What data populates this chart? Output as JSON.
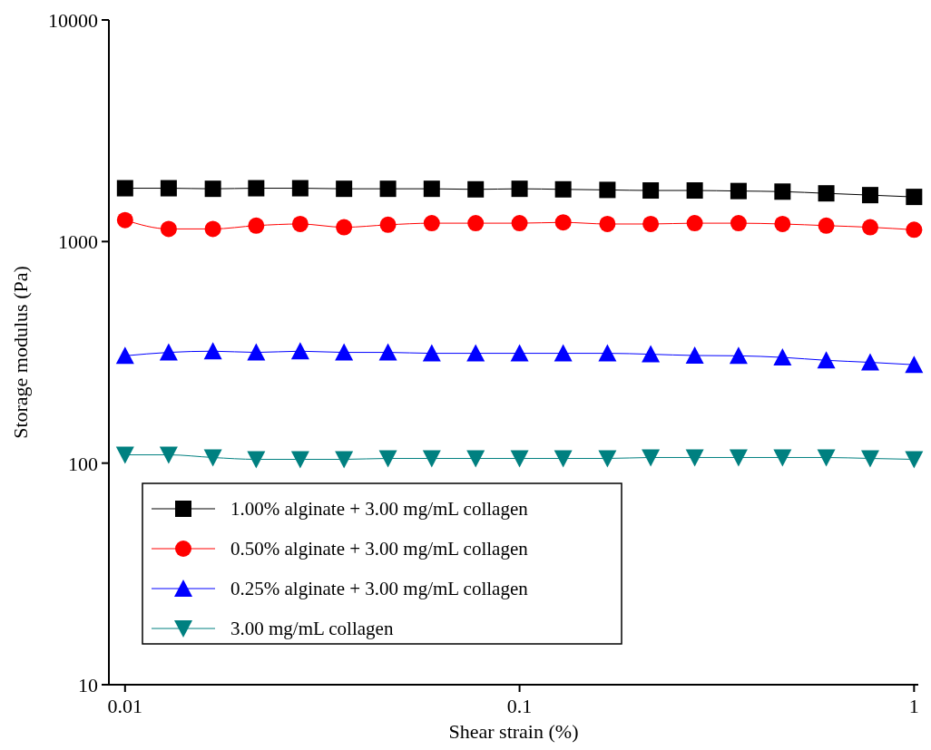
{
  "chart_data": {
    "type": "line",
    "xlabel": "Shear strain (%)",
    "ylabel": "Storage modulus (Pa)",
    "log": "xy",
    "xlim": [
      0.0091,
      1.025
    ],
    "ylim": [
      10,
      10000
    ],
    "xticks": [
      0.01,
      0.1,
      1
    ],
    "yticks": [
      10,
      100,
      1000,
      10000
    ],
    "legend": "bottom left",
    "grid": false,
    "x": [
      0.01,
      0.0129,
      0.0167,
      0.0215,
      0.0278,
      0.0359,
      0.0464,
      0.0599,
      0.0774,
      0.1,
      0.129,
      0.167,
      0.215,
      0.278,
      0.359,
      0.464,
      0.599,
      0.774,
      1
    ],
    "series": [
      {
        "name": "1.00% alginate + 3.00 mg/mL collagen",
        "color": "#000000",
        "marker": "square",
        "values": [
          1740,
          1740,
          1730,
          1740,
          1740,
          1730,
          1730,
          1730,
          1720,
          1730,
          1720,
          1710,
          1700,
          1700,
          1690,
          1680,
          1650,
          1620,
          1590
        ]
      },
      {
        "name": "0.50% alginate + 3.00 mg/mL collagen",
        "color": "#ff0000",
        "marker": "circle",
        "values": [
          1250,
          1140,
          1140,
          1180,
          1200,
          1160,
          1190,
          1210,
          1210,
          1210,
          1220,
          1200,
          1200,
          1210,
          1210,
          1200,
          1180,
          1160,
          1130
        ]
      },
      {
        "name": "0.25% alginate + 3.00 mg/mL collagen",
        "color": "#0000ff",
        "marker": "triangle",
        "values": [
          305,
          316,
          320,
          316,
          320,
          316,
          316,
          313,
          313,
          313,
          313,
          313,
          310,
          306,
          305,
          300,
          291,
          285,
          278
        ]
      },
      {
        "name": "3.00 mg/mL collagen",
        "color": "#008080",
        "marker": "triangle-down",
        "values": [
          109,
          109,
          106,
          104,
          104,
          104,
          105,
          105,
          105,
          105,
          105,
          105,
          106,
          106,
          106,
          106,
          106,
          105,
          104
        ]
      }
    ]
  }
}
